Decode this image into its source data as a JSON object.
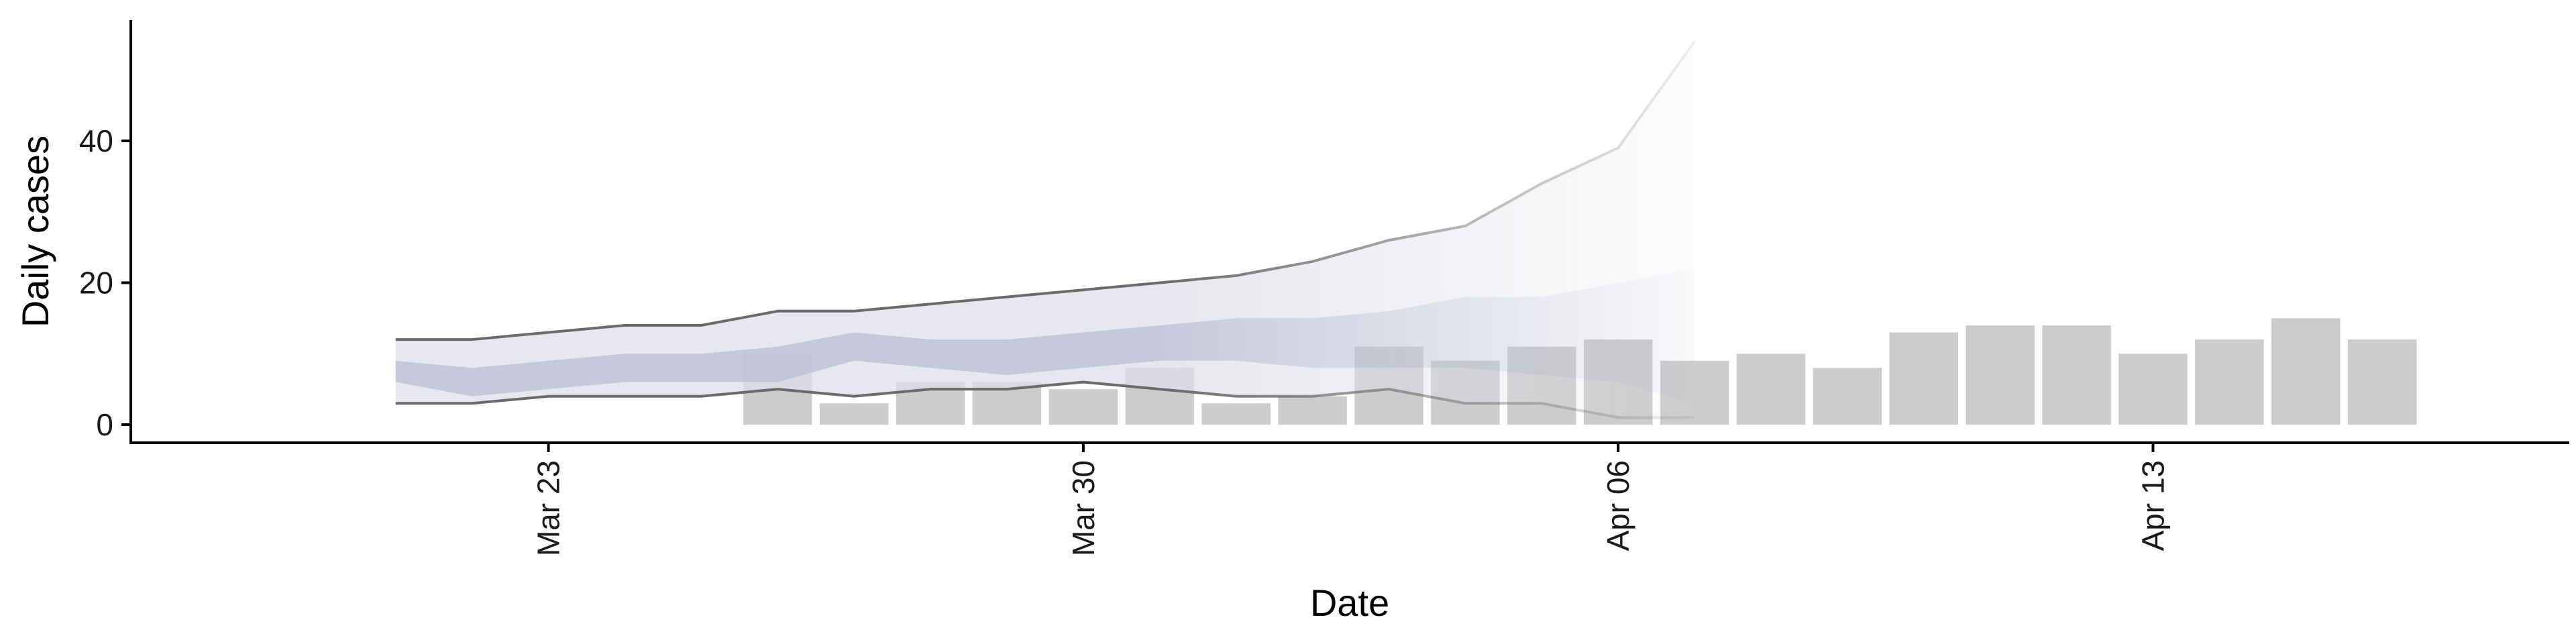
{
  "chart_data": {
    "type": "bar",
    "xlabel": "Date",
    "ylabel": "Daily cases",
    "ylim": [
      0,
      55
    ],
    "yticks": [
      0,
      20,
      40
    ],
    "xticks": [
      {
        "date": "2020-03-23",
        "label": "Mar 23"
      },
      {
        "date": "2020-03-30",
        "label": "Mar 30"
      },
      {
        "date": "2020-04-06",
        "label": "Apr 06"
      },
      {
        "date": "2020-04-13",
        "label": "Apr 13"
      }
    ],
    "xlim": [
      "2020-03-19",
      "2020-04-17"
    ],
    "grid": false,
    "bars": {
      "color": "#cccccc",
      "dates": [
        "2020-03-26",
        "2020-03-27",
        "2020-03-28",
        "2020-03-29",
        "2020-03-30",
        "2020-03-31",
        "2020-04-01",
        "2020-04-02",
        "2020-04-03",
        "2020-04-04",
        "2020-04-05",
        "2020-04-06",
        "2020-04-07",
        "2020-04-08",
        "2020-04-09",
        "2020-04-10",
        "2020-04-11",
        "2020-04-12",
        "2020-04-13",
        "2020-04-14",
        "2020-04-15",
        "2020-04-16"
      ],
      "values": [
        10,
        3,
        6,
        6,
        5,
        8,
        3,
        4,
        11,
        9,
        11,
        12,
        9,
        10,
        8,
        13,
        14,
        14,
        10,
        12,
        15,
        12
      ]
    },
    "ribbons": {
      "dates": [
        "2020-03-21",
        "2020-03-22",
        "2020-03-23",
        "2020-03-24",
        "2020-03-25",
        "2020-03-26",
        "2020-03-27",
        "2020-03-28",
        "2020-03-29",
        "2020-03-30",
        "2020-03-31",
        "2020-04-01",
        "2020-04-02",
        "2020-04-03",
        "2020-04-04",
        "2020-04-05",
        "2020-04-06",
        "2020-04-07"
      ],
      "outer_upper": [
        12,
        12,
        13,
        14,
        14,
        16,
        16,
        17,
        18,
        19,
        20,
        21,
        23,
        26,
        28,
        34,
        39,
        54
      ],
      "outer_lower": [
        3,
        3,
        4,
        4,
        4,
        5,
        4,
        5,
        5,
        6,
        5,
        4,
        4,
        5,
        3,
        3,
        1,
        1
      ],
      "inner_upper": [
        9,
        8,
        9,
        10,
        10,
        11,
        13,
        12,
        12,
        13,
        14,
        15,
        15,
        16,
        18,
        18,
        20,
        22
      ],
      "inner_lower": [
        6,
        4,
        5,
        6,
        6,
        6,
        9,
        8,
        7,
        8,
        9,
        9,
        8,
        8,
        8,
        7,
        6,
        3
      ],
      "outer_color": "#dfe0ea",
      "inner_color": "#b3b8d1",
      "edge_color": "#6b6b6b",
      "fade_start_date": "2020-03-31"
    }
  }
}
